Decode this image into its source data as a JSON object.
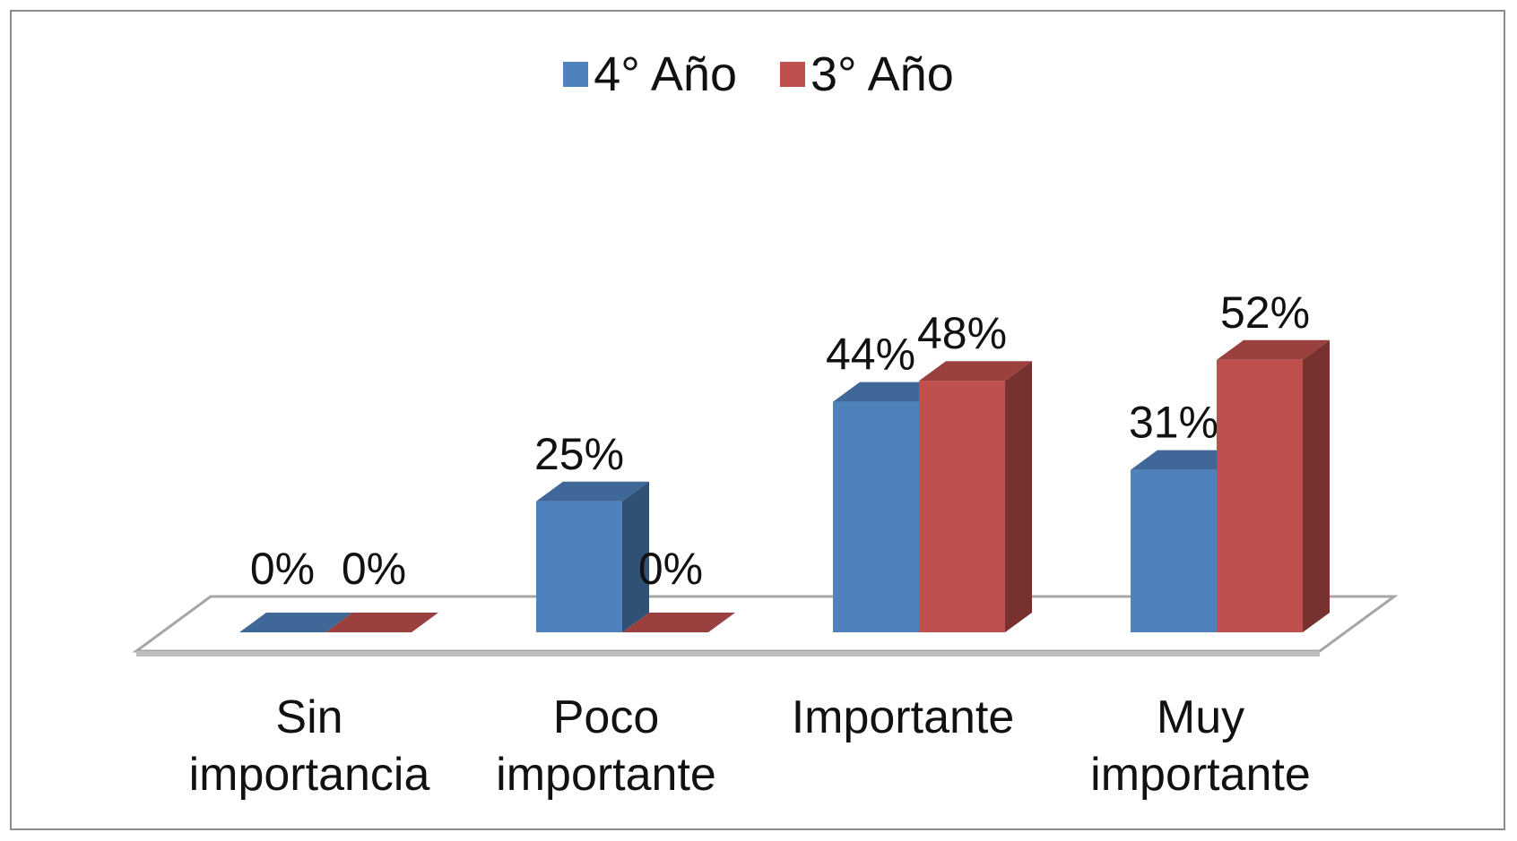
{
  "chart_data": {
    "type": "bar",
    "style": "3d-clustered-column",
    "categories": [
      [
        "Sin",
        "importancia"
      ],
      [
        "Poco",
        "importante"
      ],
      [
        "Importante"
      ],
      [
        "Muy",
        "importante"
      ]
    ],
    "series": [
      {
        "name": "4° Año",
        "color": "#4f81bd",
        "values": [
          0,
          25,
          44,
          31
        ],
        "labels": [
          "0%",
          "25%",
          "44%",
          "31%"
        ]
      },
      {
        "name": "3° Año",
        "color": "#c0504d",
        "values": [
          0,
          0,
          48,
          52
        ],
        "labels": [
          "0%",
          "0%",
          "48%",
          "52%"
        ]
      }
    ],
    "unit": "%",
    "ylim": [
      0,
      60
    ],
    "legend_position": "top",
    "grid": false
  }
}
